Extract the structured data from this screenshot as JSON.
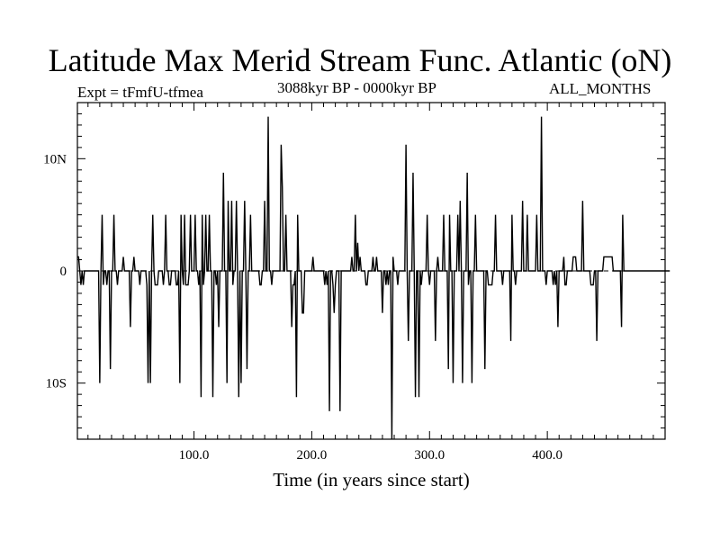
{
  "header": {
    "title": "Latitude Max Merid Stream Func. Atlantic (oN)",
    "experiment": "Expt = tFmfU-tfmea",
    "period": "3088kyr BP - 0000kyr BP",
    "months": "ALL_MONTHS"
  },
  "chart_data": {
    "type": "line",
    "title": "Latitude Max Merid Stream Func. Atlantic (oN)",
    "xlabel": "Time (in years since start)",
    "ylabel": "",
    "xlim": [
      1,
      500
    ],
    "ylim": [
      -15,
      15
    ],
    "x_ticks": [
      {
        "value": 100,
        "label": "100.0"
      },
      {
        "value": 200,
        "label": "200.0"
      },
      {
        "value": 300,
        "label": "300.0"
      },
      {
        "value": 400,
        "label": "400.0"
      }
    ],
    "y_ticks": [
      {
        "value": 10,
        "label": "10N"
      },
      {
        "value": 0,
        "label": "0"
      },
      {
        "value": -10,
        "label": "10S"
      }
    ],
    "series": [
      {
        "name": "tFmfU-tfmea",
        "x_start": 1,
        "x_step": 1,
        "values": [
          1.25,
          1.25,
          0,
          -1.25,
          0,
          -1.25,
          0,
          0,
          0,
          0,
          0,
          0,
          0,
          0,
          0,
          0,
          0,
          0,
          0,
          -10,
          0,
          5,
          -1.25,
          0,
          0,
          -1.25,
          0,
          0,
          -8.75,
          0,
          0,
          5,
          0,
          0,
          -1.25,
          0,
          0,
          0,
          0,
          1.25,
          0,
          0,
          0,
          0,
          0,
          -5,
          0,
          0,
          1.25,
          0,
          0,
          0,
          0,
          -1.25,
          0,
          0,
          0,
          0,
          0,
          -1.25,
          -10,
          0,
          -10,
          0,
          5,
          0,
          -1.25,
          -1.25,
          -1.25,
          0,
          0,
          0,
          0,
          -1.25,
          0,
          5,
          0,
          0,
          -1.25,
          -1.25,
          0,
          0,
          0,
          0,
          -1.25,
          -1.25,
          0,
          -10,
          5,
          0,
          -1.25,
          5,
          -1.25,
          -1.25,
          -1.25,
          0,
          5,
          0,
          0,
          0,
          5,
          0,
          0,
          -1.25,
          0,
          -11.25,
          5,
          -1.25,
          0,
          5,
          0,
          0,
          5,
          0,
          0,
          -11.25,
          0,
          0,
          -1.25,
          0,
          -5,
          0,
          0,
          0,
          8.75,
          0,
          0,
          -10,
          6.25,
          0,
          0,
          6.25,
          -1.25,
          0,
          0,
          6.25,
          0,
          -11.25,
          0,
          -10,
          0,
          0,
          6.25,
          0,
          -8.75,
          0,
          0,
          5,
          0,
          0,
          0,
          0,
          0,
          0,
          0,
          -1.25,
          -1.25,
          0,
          0,
          6.25,
          0,
          0,
          13.75,
          0,
          0,
          -1.25,
          0,
          0,
          0,
          0,
          0,
          0,
          0,
          11.25,
          7.5,
          0,
          0,
          5,
          0,
          0,
          0,
          0,
          -5,
          -1.25,
          -1.25,
          0,
          -11.25,
          5,
          0,
          0,
          0,
          -3.75,
          -3.75,
          0,
          0,
          0,
          0,
          0,
          0,
          0,
          1.25,
          0,
          0,
          0,
          0,
          0,
          0,
          0,
          0,
          0,
          -1.25,
          0,
          -1.25,
          0,
          -12.5,
          0,
          0,
          -1.25,
          -3.75,
          -1.25,
          0,
          0,
          0,
          -12.5,
          0,
          0,
          0,
          0,
          0,
          0,
          0,
          0,
          0,
          1.25,
          0,
          0,
          5,
          0,
          2.5,
          0,
          1.25,
          0,
          0,
          0,
          0,
          -1.25,
          -1.25,
          0,
          0,
          0,
          0,
          1.25,
          0,
          0,
          1.25,
          0,
          0,
          0,
          0,
          -3.75,
          0,
          0,
          -1.25,
          0,
          -1.25,
          0,
          0,
          -15,
          1.25,
          0,
          0,
          0,
          -1.25,
          0,
          0,
          0,
          0,
          0,
          0,
          11.25,
          0,
          -6.25,
          0,
          0,
          0,
          8.75,
          0,
          -11.25,
          0,
          0,
          -11.25,
          0,
          -1.25,
          0,
          0,
          0,
          0,
          5,
          0,
          -1.25,
          0,
          0,
          0,
          0,
          -6.25,
          0,
          1.25,
          0,
          0,
          0,
          0,
          5,
          0,
          0,
          0,
          -8.75,
          5,
          0,
          0,
          -10,
          0,
          0,
          0,
          5,
          0,
          6.25,
          0,
          -10,
          0,
          0,
          0,
          8.75,
          -1.25,
          0,
          0,
          -10,
          0,
          0,
          5,
          0,
          0,
          0,
          0,
          0,
          0,
          0,
          -8.75,
          0,
          0,
          -1.25,
          -1.25,
          -1.25,
          -1.25,
          0,
          0,
          5,
          0,
          0,
          0,
          0,
          0,
          -1.25,
          0,
          0,
          0,
          0,
          0,
          0,
          -6.25,
          5,
          0,
          0,
          -1.25,
          0,
          0,
          0,
          0,
          0,
          6.25,
          0,
          0,
          0,
          5,
          0,
          0,
          0,
          0,
          0,
          0,
          0,
          5,
          0,
          0,
          0,
          13.75,
          0,
          0,
          0,
          -1.25,
          0,
          0,
          0,
          0,
          0,
          -1.25,
          0,
          -1.25,
          0,
          -5,
          0,
          0,
          0,
          0,
          1.25,
          -1.25,
          -1.25,
          0,
          0,
          0,
          0,
          0,
          1.25,
          1.25,
          1.25,
          0,
          0,
          0,
          0,
          0,
          6.25,
          0,
          0,
          0,
          0,
          0,
          0,
          -1.25,
          -1.25,
          -1.25,
          0,
          0,
          -6.25,
          0,
          0,
          0,
          0,
          0,
          1.25,
          1.25,
          1.25,
          1.25,
          1.25,
          1.25,
          1.25,
          1.25,
          0,
          0,
          0,
          0,
          0,
          0,
          0,
          -5,
          5,
          0,
          0,
          0,
          0,
          0,
          0,
          0,
          0,
          0,
          0,
          0,
          0,
          0,
          0,
          0,
          0,
          0,
          0,
          0,
          0,
          0,
          0,
          0,
          0,
          0,
          0,
          0,
          0,
          0,
          0,
          0,
          0,
          0,
          0,
          0,
          0,
          0,
          0,
          0,
          0
        ]
      }
    ]
  }
}
